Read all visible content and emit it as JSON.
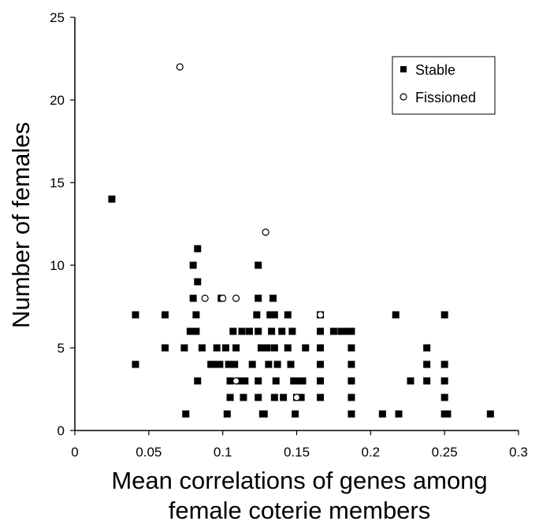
{
  "chart_data": {
    "type": "scatter",
    "title": "",
    "xlabel": [
      "Mean correlations of genes among",
      "female coterie members"
    ],
    "ylabel": "Number of females",
    "xlim": [
      0,
      0.3
    ],
    "ylim": [
      0,
      25
    ],
    "x_ticks": [
      "0",
      "0.05",
      "0.1",
      "0.15",
      "0.2",
      "0.25",
      "0.3"
    ],
    "y_ticks": [
      "0",
      "5",
      "10",
      "15",
      "20",
      "25"
    ],
    "grid": false,
    "legend_position": "top-right",
    "series": [
      {
        "name": "Stable",
        "marker": "filled-square",
        "color": "#000000",
        "points": [
          [
            0.025,
            14
          ],
          [
            0.041,
            7
          ],
          [
            0.041,
            4
          ],
          [
            0.061,
            7
          ],
          [
            0.061,
            5
          ],
          [
            0.074,
            5
          ],
          [
            0.075,
            1
          ],
          [
            0.078,
            6
          ],
          [
            0.08,
            10
          ],
          [
            0.08,
            6
          ],
          [
            0.08,
            8
          ],
          [
            0.083,
            11
          ],
          [
            0.083,
            9
          ],
          [
            0.082,
            7
          ],
          [
            0.082,
            6
          ],
          [
            0.083,
            3
          ],
          [
            0.086,
            5
          ],
          [
            0.092,
            4
          ],
          [
            0.094,
            4
          ],
          [
            0.096,
            5
          ],
          [
            0.098,
            4
          ],
          [
            0.099,
            8
          ],
          [
            0.102,
            5
          ],
          [
            0.103,
            1
          ],
          [
            0.104,
            4
          ],
          [
            0.105,
            3
          ],
          [
            0.105,
            2
          ],
          [
            0.107,
            6
          ],
          [
            0.108,
            4
          ],
          [
            0.109,
            5
          ],
          [
            0.111,
            3
          ],
          [
            0.113,
            6
          ],
          [
            0.114,
            2
          ],
          [
            0.115,
            3
          ],
          [
            0.118,
            6
          ],
          [
            0.12,
            4
          ],
          [
            0.123,
            7
          ],
          [
            0.124,
            10
          ],
          [
            0.124,
            8
          ],
          [
            0.124,
            6
          ],
          [
            0.124,
            3
          ],
          [
            0.124,
            2
          ],
          [
            0.126,
            5
          ],
          [
            0.127,
            1
          ],
          [
            0.128,
            1
          ],
          [
            0.13,
            5
          ],
          [
            0.131,
            4
          ],
          [
            0.132,
            7
          ],
          [
            0.133,
            6
          ],
          [
            0.134,
            8
          ],
          [
            0.135,
            7
          ],
          [
            0.135,
            5
          ],
          [
            0.135,
            2
          ],
          [
            0.136,
            3
          ],
          [
            0.137,
            4
          ],
          [
            0.14,
            6
          ],
          [
            0.141,
            2
          ],
          [
            0.144,
            7
          ],
          [
            0.144,
            5
          ],
          [
            0.146,
            4
          ],
          [
            0.147,
            6
          ],
          [
            0.148,
            3
          ],
          [
            0.149,
            1
          ],
          [
            0.15,
            2
          ],
          [
            0.152,
            3
          ],
          [
            0.153,
            2
          ],
          [
            0.154,
            3
          ],
          [
            0.156,
            5
          ],
          [
            0.166,
            7
          ],
          [
            0.166,
            6
          ],
          [
            0.166,
            5
          ],
          [
            0.166,
            4
          ],
          [
            0.166,
            3
          ],
          [
            0.166,
            2
          ],
          [
            0.175,
            6
          ],
          [
            0.18,
            6
          ],
          [
            0.183,
            6
          ],
          [
            0.187,
            6
          ],
          [
            0.187,
            5
          ],
          [
            0.187,
            4
          ],
          [
            0.187,
            3
          ],
          [
            0.187,
            2
          ],
          [
            0.187,
            1
          ],
          [
            0.208,
            1
          ],
          [
            0.217,
            7
          ],
          [
            0.219,
            1
          ],
          [
            0.227,
            3
          ],
          [
            0.238,
            5
          ],
          [
            0.238,
            4
          ],
          [
            0.238,
            3
          ],
          [
            0.25,
            7
          ],
          [
            0.25,
            4
          ],
          [
            0.25,
            3
          ],
          [
            0.25,
            2
          ],
          [
            0.25,
            1
          ],
          [
            0.252,
            1
          ],
          [
            0.281,
            1
          ]
        ]
      },
      {
        "name": "Fissioned",
        "marker": "open-circle",
        "color": "#000000",
        "points": [
          [
            0.071,
            22
          ],
          [
            0.129,
            12
          ],
          [
            0.088,
            8
          ],
          [
            0.1,
            8
          ],
          [
            0.109,
            8
          ],
          [
            0.109,
            3
          ],
          [
            0.15,
            2
          ],
          [
            0.166,
            7
          ]
        ]
      }
    ]
  }
}
